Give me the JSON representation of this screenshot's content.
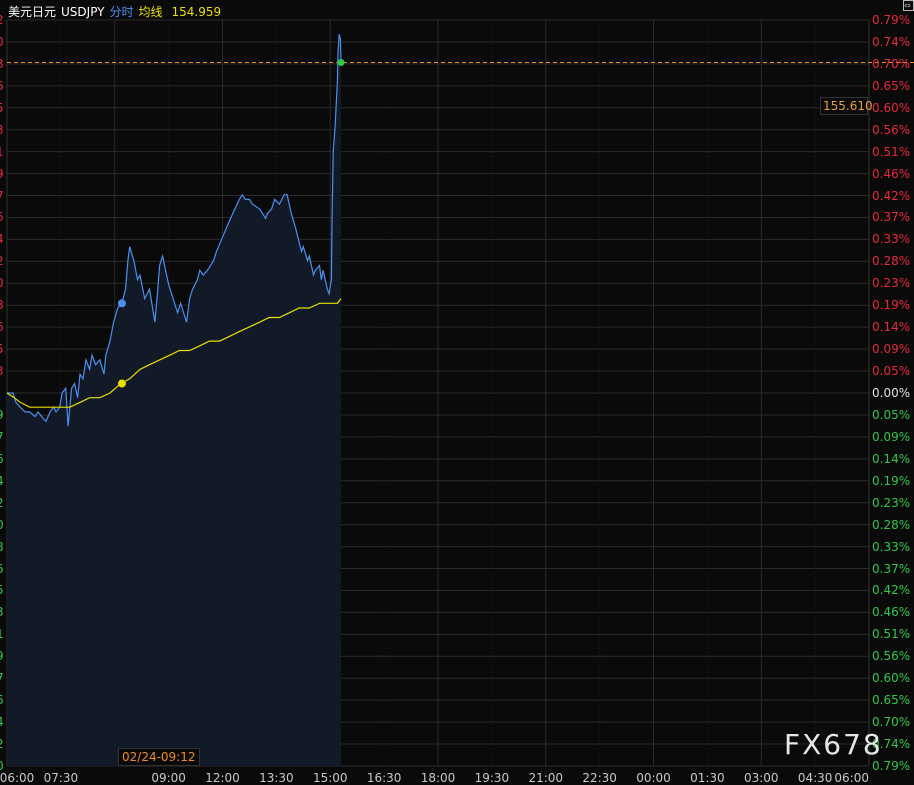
{
  "header": {
    "name": "美元日元",
    "symbol": "USDJPY",
    "mode": "分时",
    "avg_label": "均线",
    "price": "154.959"
  },
  "crosshair_time": "02/24-09:12",
  "current_price_label": "155.610",
  "watermark": "FX678",
  "colors": {
    "price_line": "#4a90f0",
    "avg_line": "#e8e000",
    "up": "#e8283a",
    "down": "#2ec84a",
    "ref_line": "#f08a24",
    "grid": "#2a2a2a",
    "fill": "#121a28"
  },
  "chart_data": {
    "type": "line",
    "x_ticks": [
      "06:00",
      "07:30",
      "09:00",
      "12:00",
      "13:30",
      "15:00",
      "16:30",
      "18:00",
      "19:30",
      "21:00",
      "22:30",
      "00:00",
      "01:30",
      "03:00",
      "04:30",
      "06:00"
    ],
    "xlim": [
      "06:00",
      "06:00 +1d"
    ],
    "ylim_pct": [
      -0.79,
      0.79
    ],
    "y_ticks_right": [
      "0.79%",
      "0.74%",
      "0.70%",
      "0.65%",
      "0.60%",
      "0.56%",
      "0.51%",
      "0.46%",
      "0.42%",
      "0.37%",
      "0.33%",
      "0.28%",
      "0.23%",
      "0.19%",
      "0.14%",
      "0.09%",
      "0.05%",
      "0.00%",
      "0.05%",
      "0.09%",
      "0.14%",
      "0.19%",
      "0.23%",
      "0.28%",
      "0.33%",
      "0.37%",
      "0.42%",
      "0.46%",
      "0.51%",
      "0.56%",
      "0.60%",
      "0.65%",
      "0.70%",
      "0.74%",
      "0.79%"
    ],
    "y_ticks_left_partial": [
      "2",
      "0",
      "8",
      "6",
      "5",
      "3",
      "1",
      "9",
      "7",
      "6",
      "4",
      "2",
      "0",
      "8",
      "6",
      "5",
      "3",
      "",
      "9",
      "7",
      "6",
      "4",
      "2",
      "0",
      "8",
      "6",
      "5",
      "3",
      "1",
      "9",
      "7",
      "6",
      "4",
      "2",
      "0"
    ],
    "reference_line_pct": 0.7,
    "grid": true,
    "series": [
      {
        "key": "price",
        "points": [
          [
            "06:00",
            0.0
          ],
          [
            "06:10",
            0.0
          ],
          [
            "06:15",
            -0.02
          ],
          [
            "06:22",
            -0.03
          ],
          [
            "06:30",
            -0.04
          ],
          [
            "06:38",
            -0.04
          ],
          [
            "06:47",
            -0.05
          ],
          [
            "06:52",
            -0.04
          ],
          [
            "06:58",
            -0.05
          ],
          [
            "07:05",
            -0.06
          ],
          [
            "07:12",
            -0.04
          ],
          [
            "07:18",
            -0.03
          ],
          [
            "07:22",
            -0.04
          ],
          [
            "07:28",
            -0.03
          ],
          [
            "07:32",
            0.0
          ],
          [
            "07:38",
            0.01
          ],
          [
            "07:42",
            -0.07
          ],
          [
            "07:45",
            -0.03
          ],
          [
            "07:48",
            0.01
          ],
          [
            "07:53",
            0.02
          ],
          [
            "07:58",
            -0.01
          ],
          [
            "08:02",
            0.04
          ],
          [
            "08:07",
            0.03
          ],
          [
            "08:12",
            0.07
          ],
          [
            "08:18",
            0.05
          ],
          [
            "08:22",
            0.08
          ],
          [
            "08:28",
            0.06
          ],
          [
            "08:35",
            0.07
          ],
          [
            "08:42",
            0.04
          ],
          [
            "08:45",
            0.08
          ],
          [
            "08:52",
            0.11
          ],
          [
            "08:58",
            0.15
          ],
          [
            "09:05",
            0.18
          ],
          [
            "09:12",
            0.19
          ],
          [
            "09:18",
            0.22
          ],
          [
            "09:22",
            0.28
          ],
          [
            "09:25",
            0.31
          ],
          [
            "09:32",
            0.28
          ],
          [
            "09:38",
            0.24
          ],
          [
            "09:42",
            0.25
          ],
          [
            "09:50",
            0.2
          ],
          [
            "09:58",
            0.22
          ],
          [
            "10:07",
            0.15
          ],
          [
            "10:12",
            0.22
          ],
          [
            "10:15",
            0.27
          ],
          [
            "10:20",
            0.29
          ],
          [
            "10:30",
            0.23
          ],
          [
            "10:40",
            0.19
          ],
          [
            "10:45",
            0.17
          ],
          [
            "10:50",
            0.19
          ],
          [
            "11:00",
            0.15
          ],
          [
            "11:05",
            0.2
          ],
          [
            "11:10",
            0.22
          ],
          [
            "11:18",
            0.24
          ],
          [
            "11:22",
            0.26
          ],
          [
            "11:28",
            0.25
          ],
          [
            "11:35",
            0.26
          ],
          [
            "11:45",
            0.28
          ],
          [
            "11:50",
            0.3
          ],
          [
            "12:00",
            0.33
          ],
          [
            "12:10",
            0.36
          ],
          [
            "12:17",
            0.38
          ],
          [
            "12:28",
            0.41
          ],
          [
            "12:33",
            0.42
          ],
          [
            "12:38",
            0.41
          ],
          [
            "12:45",
            0.41
          ],
          [
            "12:50",
            0.4
          ],
          [
            "13:02",
            0.39
          ],
          [
            "13:12",
            0.37
          ],
          [
            "13:15",
            0.38
          ],
          [
            "13:22",
            0.39
          ],
          [
            "13:27",
            0.41
          ],
          [
            "13:35",
            0.4
          ],
          [
            "13:43",
            0.42
          ],
          [
            "13:48",
            0.42
          ],
          [
            "13:55",
            0.38
          ],
          [
            "14:02",
            0.35
          ],
          [
            "14:08",
            0.32
          ],
          [
            "14:12",
            0.3
          ],
          [
            "14:15",
            0.31
          ],
          [
            "14:22",
            0.28
          ],
          [
            "14:25",
            0.29
          ],
          [
            "14:32",
            0.25
          ],
          [
            "14:35",
            0.26
          ],
          [
            "14:42",
            0.27
          ],
          [
            "14:45",
            0.24
          ],
          [
            "14:48",
            0.26
          ],
          [
            "14:55",
            0.22
          ],
          [
            "14:58",
            0.21
          ],
          [
            "15:02",
            0.24
          ],
          [
            "15:03",
            0.36
          ],
          [
            "15:05",
            0.51
          ],
          [
            "15:08",
            0.56
          ],
          [
            "15:12",
            0.66
          ],
          [
            "15:13",
            0.72
          ],
          [
            "15:15",
            0.76
          ],
          [
            "15:17",
            0.75
          ],
          [
            "15:18",
            0.7
          ]
        ]
      },
      {
        "key": "average",
        "points": [
          [
            "06:00",
            0.0
          ],
          [
            "06:12",
            -0.01
          ],
          [
            "06:22",
            -0.02
          ],
          [
            "06:38",
            -0.03
          ],
          [
            "06:55",
            -0.03
          ],
          [
            "07:12",
            -0.03
          ],
          [
            "07:28",
            -0.03
          ],
          [
            "07:45",
            -0.03
          ],
          [
            "08:02",
            -0.02
          ],
          [
            "08:18",
            -0.01
          ],
          [
            "08:35",
            -0.01
          ],
          [
            "08:52",
            0.0
          ],
          [
            "09:10",
            0.02
          ],
          [
            "09:25",
            0.03
          ],
          [
            "09:42",
            0.05
          ],
          [
            "09:58",
            0.06
          ],
          [
            "10:15",
            0.07
          ],
          [
            "10:32",
            0.08
          ],
          [
            "10:48",
            0.09
          ],
          [
            "11:05",
            0.09
          ],
          [
            "11:22",
            0.1
          ],
          [
            "11:38",
            0.11
          ],
          [
            "11:55",
            0.11
          ],
          [
            "12:12",
            0.12
          ],
          [
            "12:28",
            0.13
          ],
          [
            "12:45",
            0.14
          ],
          [
            "13:02",
            0.15
          ],
          [
            "13:18",
            0.16
          ],
          [
            "13:35",
            0.16
          ],
          [
            "13:52",
            0.17
          ],
          [
            "14:08",
            0.18
          ],
          [
            "14:25",
            0.18
          ],
          [
            "14:42",
            0.19
          ],
          [
            "14:58",
            0.19
          ],
          [
            "15:12",
            0.19
          ],
          [
            "15:18",
            0.2
          ]
        ]
      }
    ],
    "markers": [
      {
        "series": "price",
        "time": "09:12",
        "pct": 0.19
      },
      {
        "series": "average",
        "time": "09:12",
        "pct": 0.02
      },
      {
        "series": "price",
        "time": "15:18",
        "pct": 0.7,
        "current": true
      }
    ]
  }
}
